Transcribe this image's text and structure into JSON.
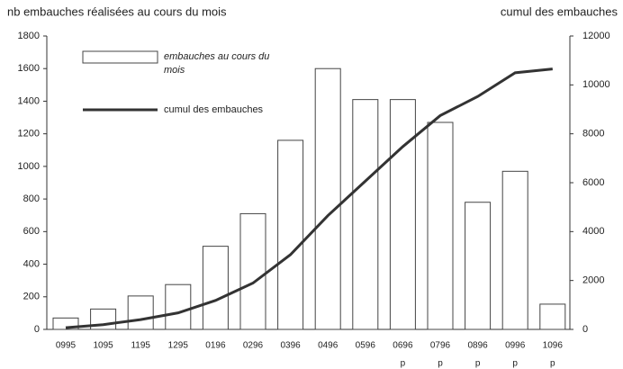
{
  "chart_data": {
    "type": "bar_line",
    "ylabel": "nb embauches réalisées au cours du mois",
    "y2label": "cumul des embauches",
    "categories": [
      "0995",
      "1095",
      "1195",
      "1295",
      "0196",
      "0296",
      "0396",
      "0496",
      "0596",
      "0696",
      "0796",
      "0896",
      "0996",
      "1096"
    ],
    "category_notes": [
      null,
      null,
      null,
      null,
      null,
      null,
      null,
      null,
      null,
      "p",
      "p",
      "p",
      "p",
      "p"
    ],
    "series": [
      {
        "name": "embauches au cours du mois",
        "type": "bar",
        "color": "#ffffff",
        "values": [
          70,
          125,
          205,
          275,
          510,
          710,
          1160,
          1600,
          1410,
          1410,
          1270,
          780,
          970,
          155
        ]
      },
      {
        "name": "cumul des embauches",
        "type": "line",
        "axis": "y2",
        "color": "#333333",
        "values": [
          70,
          195,
          400,
          675,
          1185,
          1895,
          3055,
          4655,
          6065,
          7475,
          8745,
          9525,
          10495,
          10650
        ]
      }
    ],
    "ylim": [
      0,
      1800
    ],
    "yticks": [
      0,
      200,
      400,
      600,
      800,
      1000,
      1200,
      1400,
      1600,
      1800
    ],
    "y2lim": [
      0,
      12000
    ],
    "y2ticks": [
      0,
      2000,
      4000,
      6000,
      8000,
      10000,
      12000
    ],
    "legend": "upper left"
  }
}
